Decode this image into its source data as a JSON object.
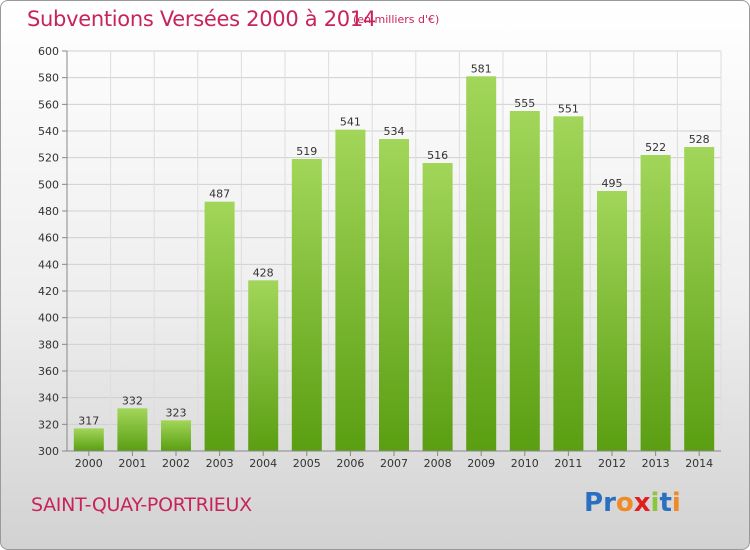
{
  "title": "Subventions Versées 2000 à 2014",
  "unit_note": "(en milliers d'€)",
  "commune": "SAINT-QUAY-PORTRIEUX",
  "logo": {
    "text": "Proxiti",
    "letters": [
      "P",
      "r",
      "o",
      "x",
      "i",
      "t",
      "i"
    ],
    "colors": [
      "#2a6fc0",
      "#2a6fc0",
      "#f08a24",
      "#e0201f",
      "#8cc63f",
      "#2a6fc0",
      "#f08a24"
    ]
  },
  "colors": {
    "accent": "#c8245a",
    "bar_top": "#9fd455",
    "bar_bottom": "#5a9e12",
    "grid": "#d0d0d0"
  },
  "chart_data": {
    "type": "bar",
    "title": "Subventions Versées 2000 à 2014",
    "xlabel": "",
    "ylabel": "",
    "categories": [
      "2000",
      "2001",
      "2002",
      "2003",
      "2004",
      "2005",
      "2006",
      "2007",
      "2008",
      "2009",
      "2010",
      "2011",
      "2012",
      "2013",
      "2014"
    ],
    "values": [
      317,
      332,
      323,
      487,
      428,
      519,
      541,
      534,
      516,
      581,
      555,
      551,
      495,
      522,
      528
    ],
    "ylim": [
      300,
      600
    ],
    "yticks": [
      300,
      320,
      340,
      360,
      380,
      400,
      420,
      440,
      460,
      480,
      500,
      520,
      540,
      560,
      580,
      600
    ],
    "grid": true
  }
}
